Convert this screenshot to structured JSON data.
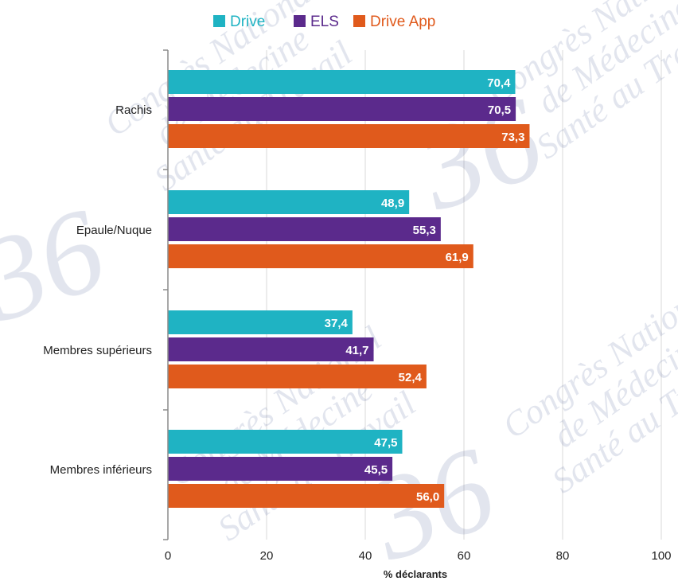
{
  "chart_data": {
    "type": "bar",
    "orientation": "horizontal",
    "categories": [
      "Rachis",
      "Epaule/Nuque",
      "Membres supérieurs",
      "Membres inférieurs"
    ],
    "series": [
      {
        "name": "Drive",
        "color": "#1FB3C3",
        "values": [
          70.4,
          48.9,
          37.4,
          47.5
        ],
        "labels": [
          "70,4",
          "48,9",
          "37,4",
          "47,5"
        ]
      },
      {
        "name": "ELS",
        "color": "#5B2A8C",
        "values": [
          70.5,
          55.3,
          41.7,
          45.5
        ],
        "labels": [
          "70,5",
          "55,3",
          "41,7",
          "45,5"
        ]
      },
      {
        "name": "Drive App",
        "color": "#E05A1C",
        "values": [
          73.3,
          61.9,
          52.4,
          56.0
        ],
        "labels": [
          "73,3",
          "61,9",
          "52,4",
          "56,0"
        ]
      }
    ],
    "xlim": [
      0,
      100
    ],
    "xticks": [
      "0",
      "20",
      "40",
      "60",
      "80",
      "100"
    ],
    "xlabel": "% déclarants",
    "ylabel": "",
    "legend_position": "top",
    "grid": true
  },
  "watermark": {
    "lines": [
      "Congrès National",
      "de Médecine",
      "Santé au Travail"
    ],
    "number": "36",
    "color": "#1F3A7A"
  }
}
